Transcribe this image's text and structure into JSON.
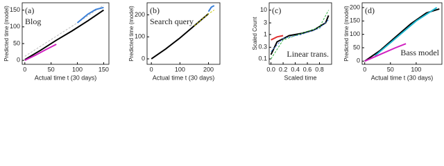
{
  "chart_data": [
    {
      "type": "line",
      "panel_label": "(a)",
      "annotation": "Blog",
      "ylabel": "Predicted time (model)",
      "xlabel": "Actual time t (30 days)",
      "xlim": [
        -5,
        160
      ],
      "ylim": [
        -12,
        172
      ],
      "xticks": [
        0,
        50,
        100,
        150
      ],
      "yticks": [
        0,
        50,
        100,
        150
      ],
      "log_y": false,
      "series": [
        {
          "color": "#bbbbbb",
          "dash": true,
          "x": [
            0,
            50,
            100,
            150
          ],
          "values": [
            12,
            62,
            112,
            165
          ]
        },
        {
          "color": "#000000",
          "dash": false,
          "x": [
            0,
            30,
            60,
            90,
            120,
            150
          ],
          "values": [
            2,
            30,
            60,
            88,
            118,
            150
          ]
        },
        {
          "color": "#3a7fd8",
          "dash": false,
          "x": [
            100,
            120,
            135,
            150
          ],
          "values": [
            112,
            138,
            152,
            158
          ]
        },
        {
          "color": "#d020c0",
          "dash": false,
          "x": [
            0,
            20,
            40,
            60
          ],
          "values": [
            0,
            15,
            32,
            48
          ]
        }
      ]
    },
    {
      "type": "line",
      "panel_label": "(b)",
      "annotation": "Search query",
      "ylabel": "Predicted time (model)",
      "xlabel": "Actual time t (30 days)",
      "xlim": [
        -15,
        240
      ],
      "ylim": [
        -25,
        255
      ],
      "xticks": [
        0,
        100,
        200
      ],
      "yticks": [
        0,
        100,
        200
      ],
      "log_y": false,
      "series": [
        {
          "color": "#000000",
          "dash": false,
          "x": [
            0,
            50,
            100,
            150,
            200
          ],
          "values": [
            0,
            45,
            95,
            150,
            205
          ]
        },
        {
          "color": "#c8c800",
          "dash": true,
          "x": [
            150,
            200,
            220
          ],
          "values": [
            150,
            205,
            222
          ]
        },
        {
          "color": "#3a7fd8",
          "dash": false,
          "x": [
            200,
            210,
            220
          ],
          "values": [
            215,
            235,
            242
          ]
        }
      ]
    },
    {
      "type": "line",
      "panel_label": "(c)",
      "annotation": "Linear trans.",
      "ylabel": "Scaled Count",
      "xlabel": "Scaled time",
      "xlim": [
        -0.03,
        1.0
      ],
      "ylim": [
        0.06,
        20
      ],
      "xticks": [
        {
          "value": 0,
          "label": "0.0"
        },
        0.2,
        0.4,
        0.6,
        0.8
      ],
      "yticks": [
        0.1,
        0.3,
        1,
        3,
        10
      ],
      "log_y": true,
      "series": [
        {
          "color": "#000000",
          "dash": false,
          "x": [
            0,
            0.1,
            0.3,
            0.5,
            0.7,
            0.9,
            0.95
          ],
          "values": [
            0.15,
            0.5,
            0.9,
            1.1,
            1.5,
            3,
            6
          ]
        },
        {
          "color": "#30b040",
          "dash": true,
          "x": [
            0,
            0.2,
            0.5,
            0.8,
            0.95
          ],
          "values": [
            0.1,
            0.6,
            1.1,
            2,
            10
          ]
        },
        {
          "color": "#3a7fd8",
          "dash": true,
          "x": [
            0,
            0.2,
            0.5,
            0.8,
            0.95
          ],
          "values": [
            0.2,
            0.7,
            1.0,
            1.8,
            4
          ]
        },
        {
          "color": "#e03030",
          "dash": false,
          "x": [
            0,
            0.1,
            0.2
          ],
          "values": [
            0.6,
            0.8,
            0.9
          ]
        }
      ]
    },
    {
      "type": "line",
      "panel_label": "(d)",
      "annotation": "Bass model",
      "ylabel": "Predicted time (model)",
      "xlabel": "Actual time t (30 days)",
      "xlim": [
        -5,
        150
      ],
      "ylim": [
        -12,
        218
      ],
      "xticks": [
        0,
        50,
        100
      ],
      "yticks": [
        0,
        50,
        100,
        150,
        200
      ],
      "log_y": false,
      "series": [
        {
          "color": "#000000",
          "dash": false,
          "x": [
            0,
            30,
            60,
            90,
            120,
            145
          ],
          "values": [
            0,
            40,
            90,
            140,
            180,
            195
          ]
        },
        {
          "color": "#20b8d0",
          "dash": false,
          "x": [
            20,
            60,
            100,
            140
          ],
          "values": [
            20,
            85,
            150,
            200
          ]
        },
        {
          "color": "#d020c0",
          "dash": false,
          "x": [
            0,
            30,
            60,
            80
          ],
          "values": [
            0,
            25,
            50,
            65
          ]
        }
      ]
    }
  ]
}
